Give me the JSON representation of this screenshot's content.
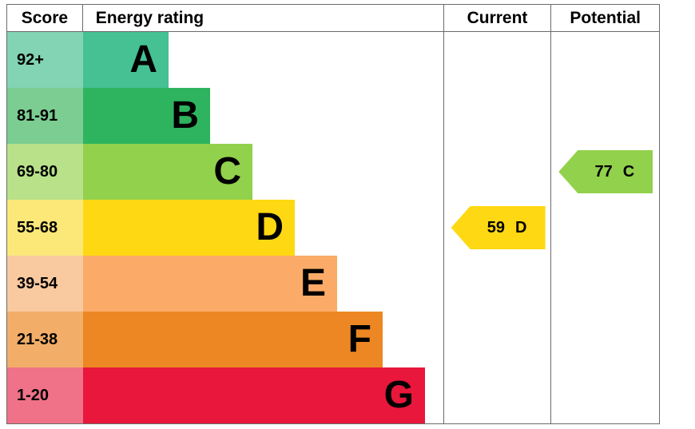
{
  "chart_data": {
    "type": "bar",
    "variant": "epc-energy-rating",
    "headers": {
      "score": "Score",
      "rating": "Energy rating",
      "current": "Current",
      "potential": "Potential"
    },
    "bands": [
      {
        "letter": "A",
        "score_range": "92+",
        "bar_color": "#45c194",
        "score_cell_color": "#82d4b4"
      },
      {
        "letter": "B",
        "score_range": "81-91",
        "bar_color": "#2eb45e",
        "score_cell_color": "#7bcd92"
      },
      {
        "letter": "C",
        "score_range": "69-80",
        "bar_color": "#92d14c",
        "score_cell_color": "#b8e189"
      },
      {
        "letter": "D",
        "score_range": "55-68",
        "bar_color": "#fed812",
        "score_cell_color": "#fbe878"
      },
      {
        "letter": "E",
        "score_range": "39-54",
        "bar_color": "#fbab67",
        "score_cell_color": "#f9c9a0"
      },
      {
        "letter": "F",
        "score_range": "21-38",
        "bar_color": "#ec8723",
        "score_cell_color": "#f2ae68"
      },
      {
        "letter": "G",
        "score_range": "1-20",
        "bar_color": "#e8173b",
        "score_cell_color": "#ef7288"
      }
    ],
    "current": {
      "value": 59,
      "band": "D",
      "color": "#fed812",
      "band_index": 3
    },
    "potential": {
      "value": 77,
      "band": "C",
      "color": "#92d14c",
      "band_index": 2
    }
  }
}
